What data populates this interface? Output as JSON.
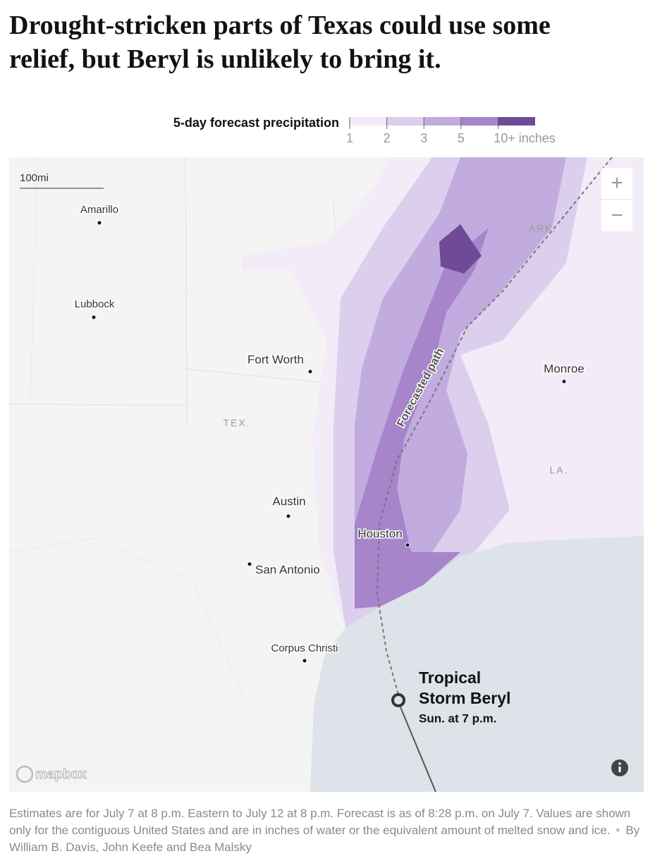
{
  "header": {
    "title": "Drought-stricken parts of Texas could use some relief, but Beryl is unlikely to bring it."
  },
  "legend": {
    "title": "5-day forecast precipitation",
    "labels": [
      "1",
      "2",
      "3",
      "5",
      "10+ inches"
    ],
    "colors": [
      "#f3ecf8",
      "#dccfee",
      "#c2abdf",
      "#a685cb",
      "#6f4b97"
    ]
  },
  "map": {
    "scale": "100mi",
    "cities": [
      "Amarillo",
      "Lubbock",
      "Fort Worth",
      "Monroe",
      "Austin",
      "Houston",
      "San Antonio",
      "Corpus Christi"
    ],
    "states": [
      "TEX.",
      "ARK.",
      "LA."
    ],
    "path_label": "Forecasted path",
    "storm": {
      "name_lines": [
        "Tropical",
        "Storm Beryl"
      ],
      "time": "Sun. at 7 p.m."
    },
    "attribution": "mapbox",
    "controls": [
      "+",
      "−"
    ]
  },
  "footer": {
    "note": "Estimates are for July 7 at 8 p.m. Eastern to July 12 at 8 p.m. Forecast is as of 8:28 p.m. on July 7. Values are shown only for the contiguous United States and are in inches of water or the equivalent amount of melted snow and ice.",
    "byline": "By William B. Davis, John Keefe and Bea Malsky"
  }
}
